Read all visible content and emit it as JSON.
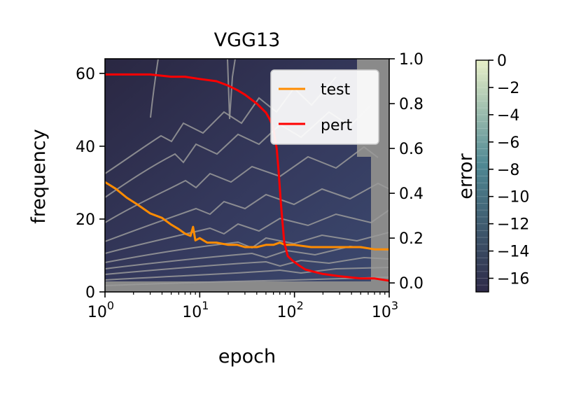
{
  "chart_data": {
    "type": "heatmap",
    "title": "VGG13",
    "xlabel": "epoch",
    "ylabel": "frequency",
    "y2label": "",
    "colorbar_label": "error",
    "xscale": "log",
    "xlim": [
      1,
      1000
    ],
    "ylim": [
      0,
      64
    ],
    "y2lim": [
      -0.04,
      1.0
    ],
    "x_ticks": [
      {
        "value": 1,
        "base": "10",
        "exp": "0"
      },
      {
        "value": 10,
        "base": "10",
        "exp": "1"
      },
      {
        "value": 100,
        "base": "10",
        "exp": "2"
      },
      {
        "value": 1000,
        "base": "10",
        "exp": "3"
      }
    ],
    "y_ticks": [
      {
        "value": 0,
        "label": "0"
      },
      {
        "value": 20,
        "label": "20"
      },
      {
        "value": 40,
        "label": "40"
      },
      {
        "value": 60,
        "label": "60"
      }
    ],
    "y2_ticks": [
      {
        "value": 0.0,
        "label": "0.0"
      },
      {
        "value": 0.2,
        "label": "0.2"
      },
      {
        "value": 0.4,
        "label": "0.4"
      },
      {
        "value": 0.6,
        "label": "0.6"
      },
      {
        "value": 0.8,
        "label": "0.8"
      },
      {
        "value": 1.0,
        "label": "1.0"
      }
    ],
    "colorbar": {
      "range": [
        -17,
        0
      ],
      "ticks": [
        {
          "value": 0,
          "label": "0"
        },
        {
          "value": -2,
          "label": "−2"
        },
        {
          "value": -4,
          "label": "−4"
        },
        {
          "value": -6,
          "label": "−6"
        },
        {
          "value": -8,
          "label": "−8"
        },
        {
          "value": -10,
          "label": "−10"
        },
        {
          "value": -12,
          "label": "−12"
        },
        {
          "value": -14,
          "label": "−14"
        },
        {
          "value": -16,
          "label": "−16"
        }
      ],
      "color_low": "#2e2a48",
      "color_mid": "#4f8893",
      "color_high": "#e8f0c8"
    },
    "legend": {
      "position": "upper-right",
      "entries": [
        {
          "name": "test",
          "color": "#ff8c00"
        },
        {
          "name": "pert",
          "color": "#ff0000"
        }
      ]
    },
    "series": [
      {
        "name": "test",
        "color": "#ff8c00",
        "x": [
          1,
          1.3,
          1.7,
          2.2,
          3,
          4,
          5,
          6,
          7,
          8,
          8.5,
          9,
          10,
          12,
          15,
          20,
          25,
          30,
          40,
          50,
          60,
          70,
          80,
          100,
          150,
          200,
          300,
          500,
          700,
          1000
        ],
        "y": [
          0.45,
          0.42,
          0.38,
          0.35,
          0.31,
          0.29,
          0.26,
          0.24,
          0.22,
          0.21,
          0.25,
          0.19,
          0.2,
          0.18,
          0.18,
          0.17,
          0.17,
          0.16,
          0.16,
          0.17,
          0.17,
          0.18,
          0.17,
          0.17,
          0.16,
          0.16,
          0.16,
          0.16,
          0.15,
          0.15
        ]
      },
      {
        "name": "pert",
        "color": "#ff0000",
        "x": [
          1,
          2,
          3,
          5,
          7,
          10,
          15,
          20,
          25,
          30,
          40,
          50,
          55,
          60,
          62,
          65,
          68,
          72,
          78,
          85,
          95,
          110,
          130,
          160,
          200,
          300,
          500,
          700,
          1000
        ],
        "y": [
          0.93,
          0.93,
          0.93,
          0.92,
          0.92,
          0.91,
          0.9,
          0.88,
          0.86,
          0.84,
          0.8,
          0.76,
          0.73,
          0.69,
          0.65,
          0.6,
          0.5,
          0.35,
          0.18,
          0.12,
          0.1,
          0.08,
          0.06,
          0.05,
          0.04,
          0.03,
          0.02,
          0.02,
          0.01
        ]
      }
    ]
  }
}
